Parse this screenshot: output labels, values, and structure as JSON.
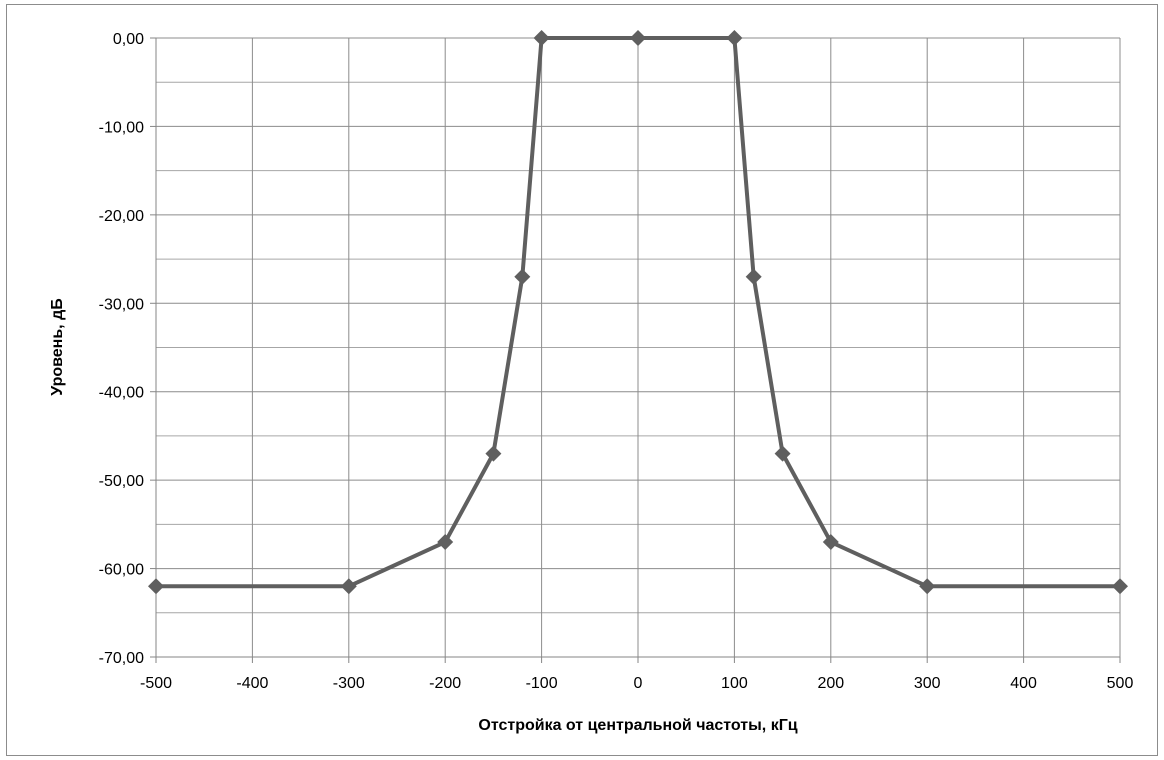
{
  "chart_data": {
    "type": "line",
    "title": "",
    "xlabel": "Отстройка от центральной частоты, кГц",
    "ylabel": "Уровень, дБ",
    "xlim": [
      -500,
      500
    ],
    "ylim": [
      -70,
      0
    ],
    "x_ticks": [
      -500,
      -400,
      -300,
      -200,
      -100,
      0,
      100,
      200,
      300,
      400,
      500
    ],
    "x_tick_labels": [
      "-500",
      "-400",
      "-300",
      "-200",
      "-100",
      "0",
      "100",
      "200",
      "300",
      "400",
      "500"
    ],
    "y_ticks": [
      0,
      -10,
      -20,
      -30,
      -40,
      -50,
      -60,
      -70
    ],
    "y_tick_labels": [
      "0,00",
      "-10,00",
      "-20,00",
      "-30,00",
      "-40,00",
      "-50,00",
      "-60,00",
      "-70,00"
    ],
    "x_minor_gridlines": [],
    "y_minor_gridlines": [
      -5,
      -15,
      -25,
      -35,
      -45,
      -55,
      -65
    ],
    "grid": true,
    "legend": "none",
    "series": [
      {
        "color": "#5f5f5f",
        "marker": "diamond",
        "points": [
          {
            "x": -500,
            "y": -62
          },
          {
            "x": -300,
            "y": -62
          },
          {
            "x": -200,
            "y": -57
          },
          {
            "x": -150,
            "y": -47
          },
          {
            "x": -120,
            "y": -27
          },
          {
            "x": -100,
            "y": 0
          },
          {
            "x": 0,
            "y": 0
          },
          {
            "x": 100,
            "y": 0
          },
          {
            "x": 120,
            "y": -27
          },
          {
            "x": 150,
            "y": -47
          },
          {
            "x": 200,
            "y": -57
          },
          {
            "x": 300,
            "y": -62
          },
          {
            "x": 500,
            "y": -62
          }
        ]
      }
    ]
  }
}
